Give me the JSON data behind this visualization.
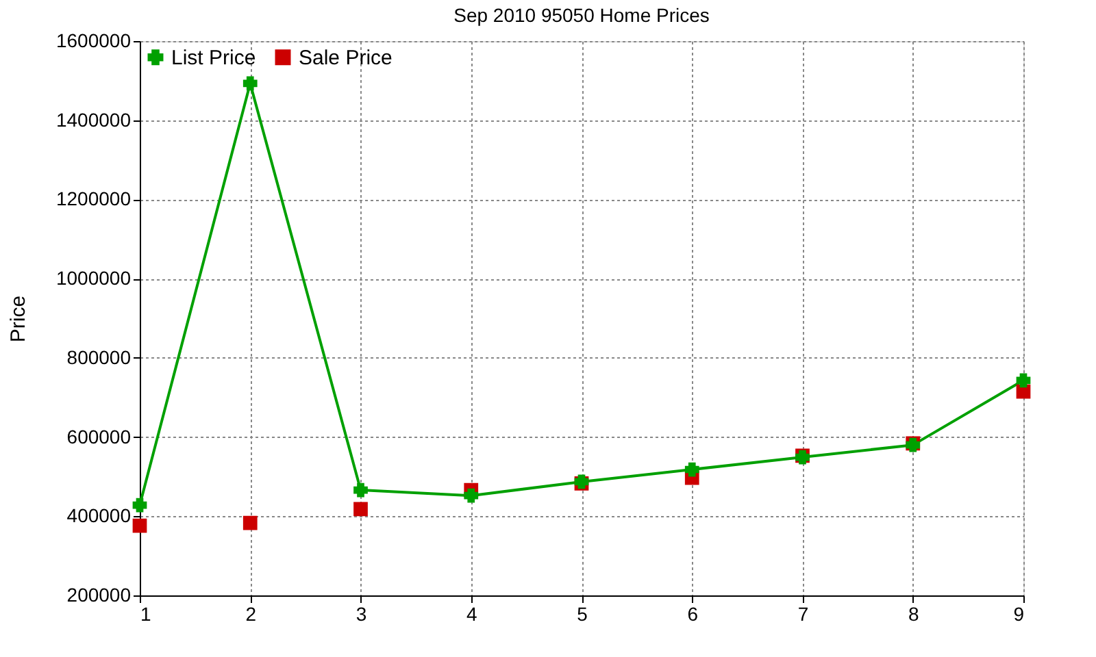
{
  "chart_data": {
    "type": "line",
    "title": "Sep 2010 95050 Home Prices",
    "ylabel": "Price",
    "x": [
      1,
      2,
      3,
      4,
      5,
      6,
      7,
      8,
      9
    ],
    "series": [
      {
        "name": "List Price",
        "type": "line",
        "color": "#00a000",
        "marker": "cross",
        "line_style": "solid",
        "values": [
          428000,
          1493000,
          466000,
          452000,
          487000,
          518000,
          549000,
          580000,
          743000
        ]
      },
      {
        "name": "Sale Price",
        "type": "scatter",
        "color": "#cc0000",
        "marker": "square",
        "values": [
          376000,
          383000,
          418000,
          466000,
          483000,
          497000,
          553000,
          584000,
          715000
        ]
      }
    ],
    "xlim": [
      1,
      9
    ],
    "xticks": [
      1,
      2,
      3,
      4,
      5,
      6,
      7,
      8,
      9
    ],
    "ylim": [
      200000,
      1600000
    ],
    "yticks": [
      200000,
      400000,
      600000,
      800000,
      1000000,
      1200000,
      1400000,
      1600000
    ],
    "grid": true,
    "legend": "top left"
  }
}
